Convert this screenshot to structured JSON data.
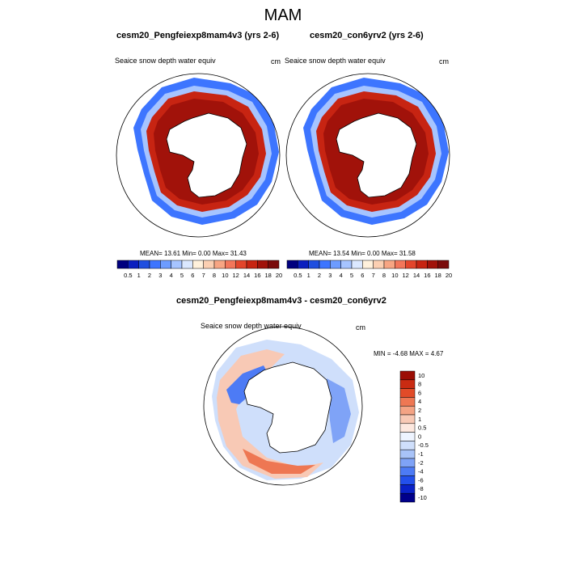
{
  "page": {
    "title": "MAM",
    "units": "cm",
    "variable": "Seaice snow depth water equiv"
  },
  "colors": {
    "land_line": "#000000",
    "abs_scale": [
      "#00007f",
      "#0a1fbf",
      "#1f4fe0",
      "#3d75ff",
      "#6d9cff",
      "#a6c4ff",
      "#dbe8ff",
      "#fff1dc",
      "#fbcfb2",
      "#f7a583",
      "#f2765a",
      "#e3452b",
      "#c72412",
      "#a1120a",
      "#7a0a0a"
    ],
    "diff_scale": [
      "#00008b",
      "#0a22c8",
      "#2350ec",
      "#4d7bf5",
      "#7fa3f7",
      "#a8c3f8",
      "#cfdffb",
      "#eef4ff",
      "#fde8df",
      "#f8c9b5",
      "#f4a384",
      "#ee7753",
      "#e14b28",
      "#c92b12",
      "#9c0e05"
    ]
  },
  "chart_data": [
    {
      "type": "heatmap",
      "panel": "top-left",
      "title": "cesm20_Pengfeiexp8mam4v3 (yrs 2-6)",
      "subtitle": "Seaice snow depth water equiv",
      "units": "cm",
      "stats_text": "MEAN=  13.61  Min=   0.00  Max=  31.43",
      "stats": {
        "mean": 13.61,
        "min": 0.0,
        "max": 31.43
      },
      "colorbar_orientation": "horizontal",
      "colorbar_levels": [
        "0.5",
        "1",
        "2",
        "3",
        "4",
        "5",
        "6",
        "7",
        "8",
        "10",
        "12",
        "14",
        "16",
        "18",
        "20"
      ]
    },
    {
      "type": "heatmap",
      "panel": "top-right",
      "title": "cesm20_con6yrv2 (yrs 2-6)",
      "subtitle": "Seaice snow depth water equiv",
      "units": "cm",
      "stats_text": "MEAN=  13.54  Min=   0.00  Max=  31.58",
      "stats": {
        "mean": 13.54,
        "min": 0.0,
        "max": 31.58
      },
      "colorbar_orientation": "horizontal",
      "colorbar_levels": [
        "0.5",
        "1",
        "2",
        "3",
        "4",
        "5",
        "6",
        "7",
        "8",
        "10",
        "12",
        "14",
        "16",
        "18",
        "20"
      ]
    },
    {
      "type": "heatmap",
      "panel": "bottom",
      "title": "cesm20_Pengfeiexp8mam4v3 - cesm20_con6yrv2",
      "subtitle": "Seaice snow depth water equiv",
      "units": "cm",
      "stats_text": "MIN =  -4.68 MAX =   4.67",
      "stats": {
        "min": -4.68,
        "max": 4.67
      },
      "colorbar_orientation": "vertical",
      "colorbar_levels": [
        "10",
        "8",
        "6",
        "4",
        "2",
        "1",
        "0.5",
        "0",
        "-0.5",
        "-1",
        "-2",
        "-4",
        "-6",
        "-8",
        "-10"
      ]
    }
  ]
}
